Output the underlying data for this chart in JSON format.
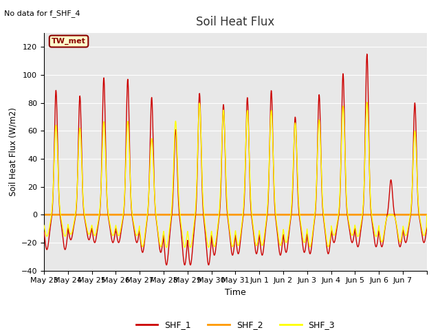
{
  "title": "Soil Heat Flux",
  "subtitle": "No data for f_SHF_4",
  "xlabel": "Time",
  "ylabel": "Soil Heat Flux (W/m2)",
  "ylim": [
    -40,
    130
  ],
  "yticks": [
    -40,
    -20,
    0,
    20,
    40,
    60,
    80,
    100,
    120
  ],
  "legend_label": "TW_met",
  "series_colors": {
    "SHF_1": "#cc0000",
    "SHF_2": "#ff9900",
    "SHF_3": "#ffff00"
  },
  "plot_bg": "#e8e8e8",
  "fig_bg": "#ffffff",
  "x_labels": [
    "May 23",
    "May 24",
    "May 25",
    "May 26",
    "May 27",
    "May 28",
    "May 29",
    "May 30",
    "May 31",
    "Jun 1",
    "Jun 2",
    "Jun 3",
    "Jun 4",
    "Jun 5",
    "Jun 6",
    "Jun 7",
    ""
  ],
  "num_days": 16,
  "peak_heights_shf1": [
    89,
    85,
    98,
    97,
    84,
    61,
    87,
    79,
    84,
    89,
    70,
    86,
    101,
    115,
    25
  ],
  "trough_depths_shf1": [
    -25,
    -18,
    -20,
    -20,
    -27,
    -36,
    -36,
    -29,
    -28,
    -29,
    -27,
    -28,
    -20,
    -23,
    -23
  ],
  "peak_ratio_shf3": [
    0.72,
    0.73,
    0.68,
    0.69,
    0.65,
    1.1,
    0.92,
    0.95,
    0.89,
    0.84,
    0.94,
    0.79,
    0.77,
    0.7,
    0.0
  ],
  "trough_ratio_shf3": [
    0.62,
    0.78,
    0.75,
    0.75,
    0.85,
    0.65,
    0.65,
    0.79,
    0.79,
    0.76,
    0.74,
    0.82,
    0.74,
    0.68,
    0.85
  ]
}
